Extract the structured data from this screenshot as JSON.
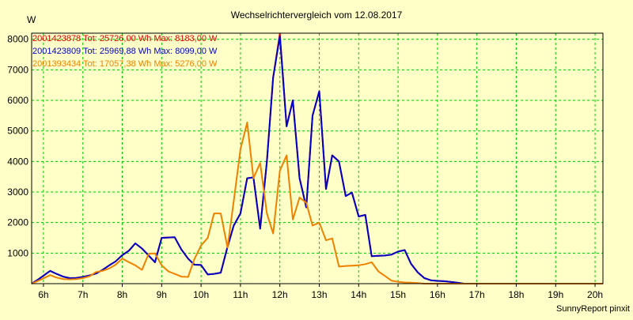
{
  "chart_data": {
    "type": "line",
    "title": "Wechselrichtervergleich vom 12.08.2017",
    "ylabel": "W",
    "xlabel": "",
    "footer": "SunnyReport pinxit",
    "ylim": [
      0,
      8200
    ],
    "yticks": [
      1000,
      2000,
      3000,
      4000,
      5000,
      6000,
      7000,
      8000
    ],
    "xlim": [
      5.7,
      20.2
    ],
    "xticks": [
      {
        "v": 6,
        "label": "6h"
      },
      {
        "v": 7,
        "label": "7h"
      },
      {
        "v": 8,
        "label": "8h"
      },
      {
        "v": 9,
        "label": "9h"
      },
      {
        "v": 10,
        "label": "10h"
      },
      {
        "v": 11,
        "label": "11h"
      },
      {
        "v": 12,
        "label": "12h"
      },
      {
        "v": 13,
        "label": "13h"
      },
      {
        "v": 14,
        "label": "14h"
      },
      {
        "v": 15,
        "label": "15h"
      },
      {
        "v": 16,
        "label": "16h"
      },
      {
        "v": 17,
        "label": "17h"
      },
      {
        "v": 18,
        "label": "18h"
      },
      {
        "v": 19,
        "label": "19h"
      },
      {
        "v": 20,
        "label": "20h"
      }
    ],
    "grid": true,
    "legend_position": "top-left",
    "x": [
      5.7,
      5.88,
      6.17,
      6.33,
      6.5,
      6.67,
      6.83,
      7.0,
      7.17,
      7.33,
      7.5,
      7.67,
      7.83,
      8.0,
      8.17,
      8.33,
      8.5,
      8.67,
      8.83,
      9.0,
      9.17,
      9.33,
      9.5,
      9.67,
      9.83,
      10.0,
      10.17,
      10.33,
      10.5,
      10.67,
      10.83,
      11.0,
      11.17,
      11.33,
      11.5,
      11.67,
      11.83,
      12.0,
      12.17,
      12.33,
      12.5,
      12.67,
      12.83,
      13.0,
      13.17,
      13.33,
      13.5,
      13.67,
      13.83,
      14.0,
      14.17,
      14.33,
      14.5,
      14.67,
      14.83,
      15.0,
      15.17,
      15.33,
      15.5,
      15.67,
      15.83,
      16.0,
      16.17,
      16.33,
      16.5,
      16.67,
      16.83,
      17.0,
      17.17,
      17.33,
      17.5,
      17.67,
      17.83,
      18.0,
      18.17,
      18.33,
      18.5,
      18.67,
      18.83,
      19.0,
      19.5,
      20.2
    ],
    "series": [
      {
        "name": "2001423878 Tot: 25726,00 Wh Max: 8183,00 W",
        "color": "#e00000",
        "values": [
          0,
          150,
          420,
          320,
          230,
          180,
          190,
          220,
          270,
          330,
          450,
          600,
          730,
          930,
          1080,
          1320,
          1150,
          920,
          700,
          1500,
          1510,
          1520,
          1120,
          820,
          620,
          610,
          300,
          320,
          360,
          1200,
          1900,
          2300,
          3450,
          3480,
          1800,
          4000,
          6750,
          8183,
          5150,
          6000,
          3450,
          2500,
          5500,
          6300,
          3100,
          4200,
          4000,
          2870,
          2980,
          2200,
          2250,
          900,
          910,
          920,
          950,
          1050,
          1100,
          650,
          370,
          180,
          110,
          90,
          80,
          60,
          30,
          0,
          0,
          0,
          0,
          0,
          0,
          0,
          0,
          0,
          0,
          0,
          0,
          0,
          0,
          0,
          0,
          0
        ],
        "draw": true
      },
      {
        "name": "2001423809 Tot: 25969,88 Wh Max: 8099,00 W",
        "color": "#0000c8",
        "values": [
          0,
          150,
          420,
          320,
          230,
          180,
          190,
          220,
          270,
          330,
          450,
          600,
          730,
          930,
          1080,
          1320,
          1150,
          920,
          700,
          1500,
          1510,
          1520,
          1120,
          820,
          620,
          610,
          300,
          320,
          360,
          1200,
          1900,
          2300,
          3450,
          3480,
          1800,
          4000,
          6750,
          8099,
          5150,
          6000,
          3450,
          2500,
          5500,
          6300,
          3100,
          4200,
          4000,
          2870,
          2980,
          2200,
          2250,
          900,
          910,
          920,
          950,
          1050,
          1100,
          650,
          370,
          180,
          110,
          90,
          80,
          60,
          30,
          0,
          0,
          0,
          0,
          0,
          0,
          0,
          0,
          0,
          0,
          0,
          0,
          0,
          0,
          0,
          0,
          0
        ],
        "draw": true
      },
      {
        "name": "2001393434 Tot: 17057,38 Wh Max: 5276,00 W",
        "color": "#f08000",
        "values": [
          0,
          100,
          280,
          200,
          150,
          140,
          150,
          180,
          240,
          380,
          420,
          500,
          620,
          820,
          700,
          600,
          450,
          980,
          990,
          600,
          400,
          320,
          230,
          220,
          800,
          1250,
          1500,
          2300,
          2300,
          1180,
          2700,
          4400,
          5276,
          3450,
          3950,
          2300,
          1640,
          3700,
          4200,
          2100,
          2820,
          2650,
          1900,
          2000,
          1420,
          1480,
          560,
          580,
          590,
          600,
          640,
          700,
          400,
          250,
          100,
          60,
          40,
          30,
          20,
          0,
          0,
          0,
          0,
          0,
          0,
          0,
          0,
          0,
          0,
          0,
          0,
          0,
          0,
          0,
          0,
          0,
          0,
          0,
          0,
          0,
          0,
          0
        ],
        "draw": true
      }
    ]
  },
  "colors": {
    "background": "#ffffc8",
    "grid": "#00c800",
    "axis": "#000000"
  }
}
